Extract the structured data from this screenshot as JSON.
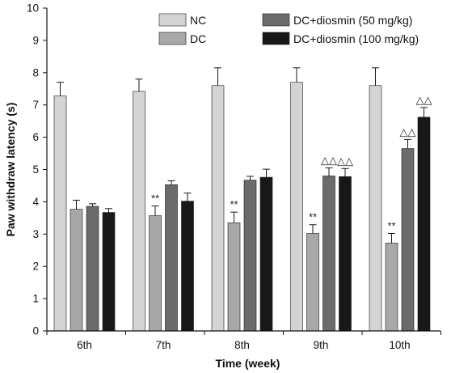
{
  "chart_data": {
    "type": "bar",
    "title": "",
    "xlabel": "Time (week)",
    "ylabel": "Paw withdraw latency (s)",
    "ylim": [
      0,
      10
    ],
    "yticks": [
      0,
      1,
      2,
      3,
      4,
      5,
      6,
      7,
      8,
      9,
      10
    ],
    "categories": [
      "6th",
      "7th",
      "8th",
      "9th",
      "10th"
    ],
    "legend_position": "top-right",
    "error_bars": "upper",
    "grid": false,
    "series": [
      {
        "name": "NC",
        "color": "#d4d4d4",
        "values": [
          7.28,
          7.42,
          7.6,
          7.7,
          7.6
        ],
        "errors": [
          0.42,
          0.38,
          0.55,
          0.45,
          0.55
        ]
      },
      {
        "name": "DC",
        "color": "#a8a8a8",
        "values": [
          3.77,
          3.57,
          3.35,
          3.02,
          2.72
        ],
        "errors": [
          0.28,
          0.3,
          0.33,
          0.27,
          0.3
        ]
      },
      {
        "name": "DC+diosmin (50 mg/kg)",
        "color": "#6b6b6b",
        "values": [
          3.86,
          4.53,
          4.67,
          4.8,
          5.65
        ],
        "errors": [
          0.08,
          0.12,
          0.12,
          0.25,
          0.28
        ]
      },
      {
        "name": "DC+diosmin (100 mg/kg)",
        "color": "#181818",
        "values": [
          3.67,
          4.02,
          4.76,
          4.78,
          6.62
        ],
        "errors": [
          0.12,
          0.25,
          0.25,
          0.25,
          0.3
        ]
      }
    ],
    "annotations": [
      {
        "category": "7th",
        "series": "DC",
        "text": "**"
      },
      {
        "category": "8th",
        "series": "DC",
        "text": "**"
      },
      {
        "category": "9th",
        "series": "DC",
        "text": "**"
      },
      {
        "category": "10th",
        "series": "DC",
        "text": "**"
      },
      {
        "category": "9th",
        "series": "DC+diosmin (50 mg/kg)",
        "text": "△△"
      },
      {
        "category": "9th",
        "series": "DC+diosmin (100 mg/kg)",
        "text": "△△"
      },
      {
        "category": "10th",
        "series": "DC+diosmin (50 mg/kg)",
        "text": "△△"
      },
      {
        "category": "10th",
        "series": "DC+diosmin (100 mg/kg)",
        "text": "△△"
      }
    ]
  }
}
